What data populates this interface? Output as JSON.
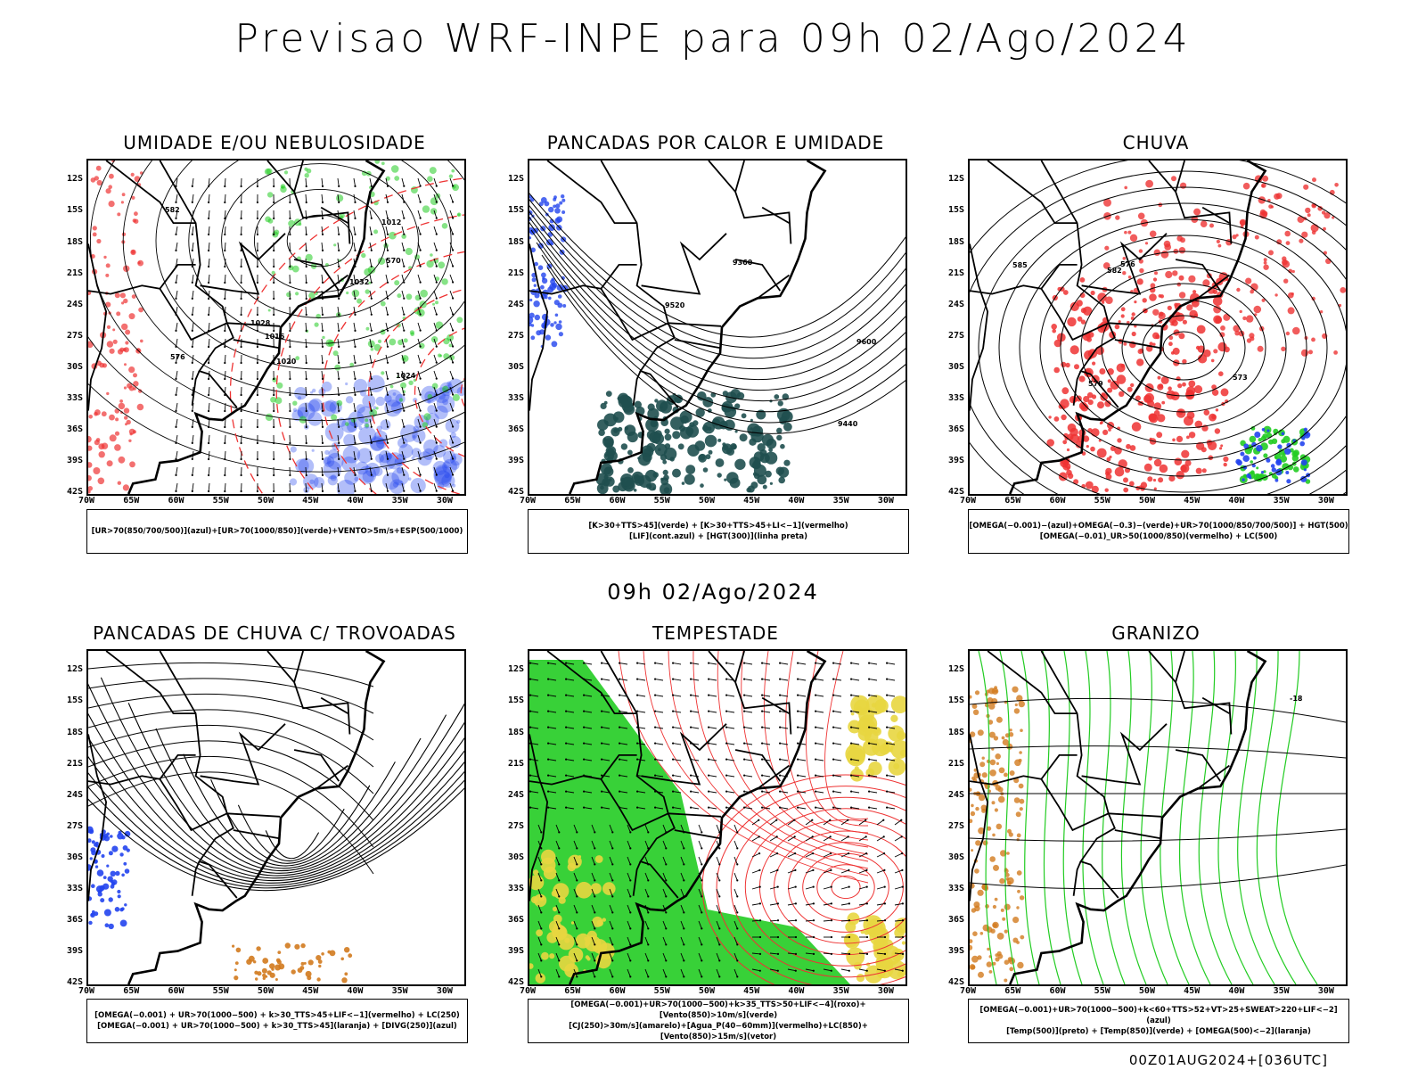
{
  "title": "Previsao WRF-INPE  para 09h 02/Ago/2024",
  "subtitle": "09h 02/Ago/2024",
  "footer": "00Z01AUG2024+[036UTC]",
  "colors": {
    "red": "#ee3333",
    "green": "#22cc22",
    "blue": "#2244ee",
    "teal": "#1f4f4f",
    "yellow": "#e8d640",
    "orange": "#d27a1e",
    "black": "#000000"
  },
  "chart_data": [
    {
      "type": "map",
      "title": "UMIDADE E/OU NEBULOSIDADE",
      "lat_ticks": [
        "12S",
        "15S",
        "18S",
        "21S",
        "24S",
        "27S",
        "30S",
        "33S",
        "36S",
        "39S",
        "42S"
      ],
      "lon_ticks": [
        "70W",
        "65W",
        "60W",
        "55W",
        "50W",
        "45W",
        "40W",
        "35W",
        "30W"
      ],
      "lat_range": [
        -42,
        -10
      ],
      "lon_range": [
        -70,
        -28
      ],
      "contour_labels": [
        "1012",
        "1016",
        "1020",
        "1024",
        "1028",
        "1032",
        "570",
        "576",
        "582"
      ],
      "legend": [
        "[UR>70(850/700/500)](azul)+[UR>70(1000/850)](verde)+VENTO>5m/s+ESP(500/1000)"
      ]
    },
    {
      "type": "map",
      "title": "PANCADAS POR CALOR E UMIDADE",
      "lat_ticks": [
        "12S",
        "15S",
        "18S",
        "21S",
        "24S",
        "27S",
        "30S",
        "33S",
        "36S",
        "39S",
        "42S"
      ],
      "lon_ticks": [
        "70W",
        "65W",
        "60W",
        "55W",
        "50W",
        "45W",
        "40W",
        "35W",
        "30W"
      ],
      "lat_range": [
        -42,
        -10
      ],
      "lon_range": [
        -70,
        -28
      ],
      "contour_labels": [
        "9600",
        "9520",
        "9440",
        "9360"
      ],
      "legend": [
        "[K>30+TTS>45](verde)  +  [K>30+TTS>45+LI<−1](vermelho)",
        "[LIF](cont.azul)  +  [HGT(300)](linha preta)"
      ]
    },
    {
      "type": "map",
      "title": "CHUVA",
      "lat_ticks": [
        "12S",
        "15S",
        "18S",
        "21S",
        "24S",
        "27S",
        "30S",
        "33S",
        "36S",
        "39S",
        "42S"
      ],
      "lon_ticks": [
        "70W",
        "65W",
        "60W",
        "55W",
        "50W",
        "45W",
        "40W",
        "35W",
        "30W"
      ],
      "lat_range": [
        -42,
        -10
      ],
      "lon_range": [
        -70,
        -28
      ],
      "contour_labels": [
        "585",
        "582",
        "579",
        "576",
        "573"
      ],
      "legend": [
        "[OMEGA(−0.001)−(azul)+OMEGA(−0.3)−(verde)+UR>70(1000/850/700/500)]  +  HGT(500)",
        "[OMEGA(−0.01)_UR>50(1000/850)(vermelho)  +  LC(500)"
      ]
    },
    {
      "type": "map",
      "title": "PANCADAS DE CHUVA C/ TROVOADAS",
      "lat_ticks": [
        "12S",
        "15S",
        "18S",
        "21S",
        "24S",
        "27S",
        "30S",
        "33S",
        "36S",
        "39S",
        "42S"
      ],
      "lon_ticks": [
        "70W",
        "65W",
        "60W",
        "55W",
        "50W",
        "45W",
        "40W",
        "35W",
        "30W"
      ],
      "lat_range": [
        -42,
        -10
      ],
      "lon_range": [
        -70,
        -28
      ],
      "contour_labels": [],
      "legend": [
        "[OMEGA(−0.001)  +  UR>70(1000−500)  +  k>30_TTS>45+LIF<−1](vermelho)  +  LC(250)",
        "[OMEGA(−0.001)  +  UR>70(1000−500)  +  k>30_TTS>45](laranja)  +  [DIVG(250)](azul)"
      ]
    },
    {
      "type": "map",
      "title": "TEMPESTADE",
      "lat_ticks": [
        "12S",
        "15S",
        "18S",
        "21S",
        "24S",
        "27S",
        "30S",
        "33S",
        "36S",
        "39S",
        "42S"
      ],
      "lon_ticks": [
        "70W",
        "65W",
        "60W",
        "55W",
        "50W",
        "45W",
        "40W",
        "35W",
        "30W"
      ],
      "lat_range": [
        -42,
        -10
      ],
      "lon_range": [
        -70,
        -28
      ],
      "contour_labels": [],
      "legend": [
        "[OMEGA(−0.001)+UR>70(1000−500)+k>35_TTS>50+LIF<−4](roxo)+[Vento(850)>10m/s](verde)",
        "[CJ(250)>30m/s](amarelo)+[Agua_P(40−60mm)](vermelho)+LC(850)+[Vento(850)>15m/s](vetor)"
      ]
    },
    {
      "type": "map",
      "title": "GRANIZO",
      "lat_ticks": [
        "12S",
        "15S",
        "18S",
        "21S",
        "24S",
        "27S",
        "30S",
        "33S",
        "36S",
        "39S",
        "42S"
      ],
      "lon_ticks": [
        "70W",
        "65W",
        "60W",
        "55W",
        "50W",
        "45W",
        "40W",
        "35W",
        "30W"
      ],
      "lat_range": [
        -42,
        -10
      ],
      "lon_range": [
        -70,
        -28
      ],
      "contour_labels": [
        "-18"
      ],
      "legend": [
        "[OMEGA(−0.001)+UR>70(1000−500)+k<60+TTS>52+VT>25+SWEAT>220+LIF<−2](azul)",
        "[Temp(500)](preto)  +  [Temp(850)](verde)  +  [OMEGA(500)<−2](laranja)"
      ]
    }
  ]
}
